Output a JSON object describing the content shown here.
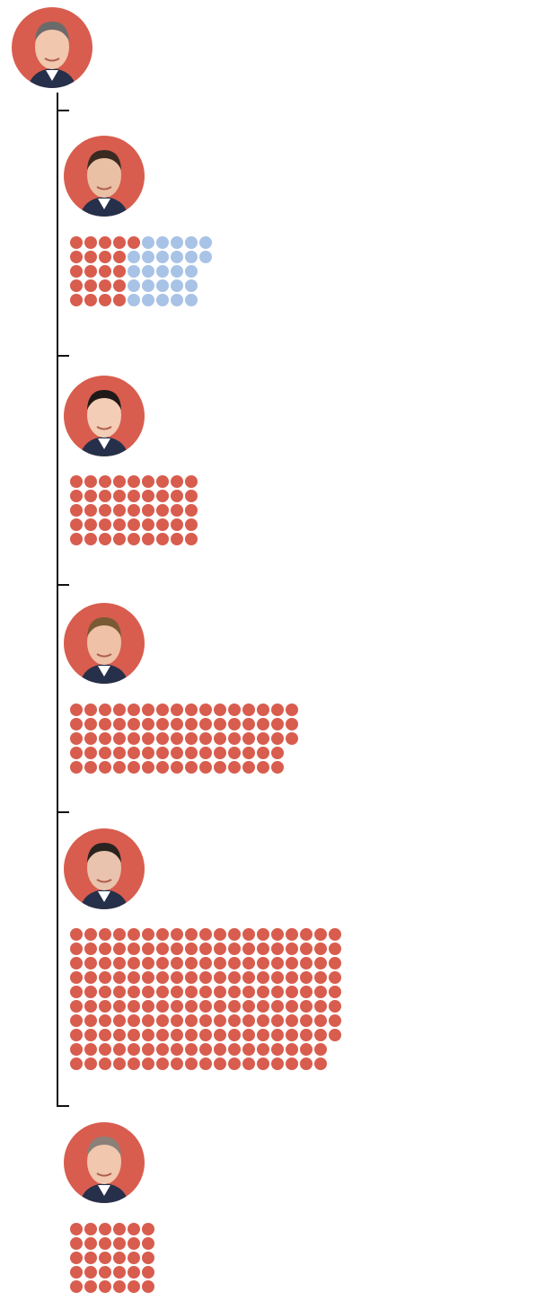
{
  "colors": {
    "red": "#d85d4e",
    "blue": "#a8c3e6",
    "avatar_bg": "#d85d4e",
    "line": "#111111"
  },
  "root": {
    "avatar": "speaker-portrait"
  },
  "chart_data": {
    "type": "dot-tree",
    "rows_per_column_default": 5,
    "groups": [
      {
        "avatar": "member-portrait-1",
        "rows": 5,
        "segments": [
          {
            "color": "red",
            "count": 21
          },
          {
            "color": "blue",
            "count": 26
          }
        ]
      },
      {
        "avatar": "member-portrait-2",
        "rows": 5,
        "segments": [
          {
            "color": "red",
            "count": 45
          }
        ]
      },
      {
        "avatar": "member-portrait-3",
        "rows": 5,
        "segments": [
          {
            "color": "red",
            "count": 78
          }
        ]
      },
      {
        "avatar": "member-portrait-4",
        "rows": 10,
        "segments": [
          {
            "color": "red",
            "count": 188
          }
        ]
      },
      {
        "avatar": "member-portrait-5",
        "rows": 5,
        "segments": [
          {
            "color": "red",
            "count": 30
          }
        ]
      }
    ]
  }
}
